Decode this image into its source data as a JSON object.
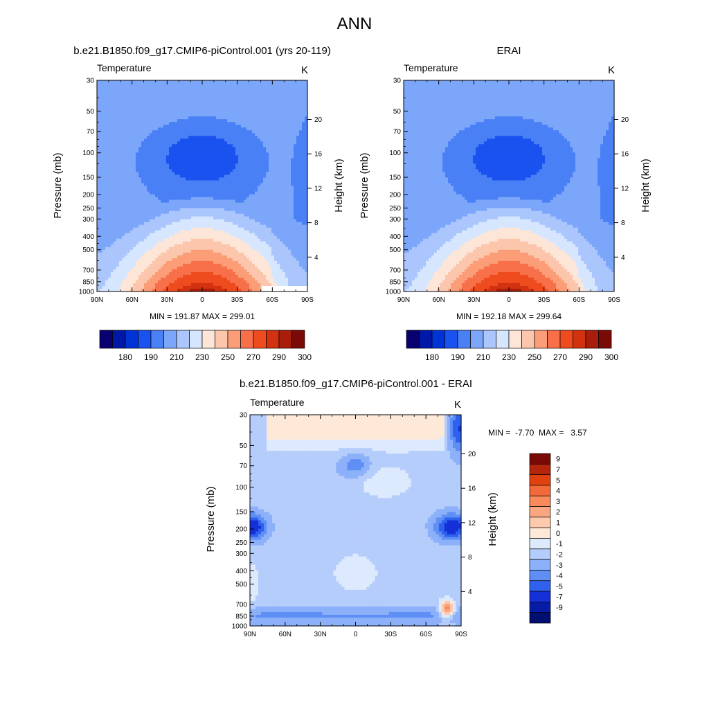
{
  "figure_title": "ANN",
  "panels": [
    {
      "id": "model",
      "title": "b.e21.B1850.f09_g17.CMIP6-piControl.001 (yrs 20-119)",
      "left_label": "Temperature",
      "right_label": "K",
      "ylabel": "Pressure (mb)",
      "y2label": "Height (km)",
      "stats": "MIN = 191.87  MAX = 299.01",
      "center_lat": 10,
      "center_y": 0.57,
      "sx": 70,
      "sy": 0.17,
      "peak": 299,
      "valley": 191.9,
      "warm_top": 0,
      "top_cold_poleS": 0,
      "bump1": 1
    },
    {
      "id": "obs",
      "title": "ERAI",
      "left_label": "Temperature",
      "right_label": "K",
      "ylabel": "Pressure (mb)",
      "y2label": "Height (km)",
      "stats": "MIN = 192.18  MAX = 299.64",
      "center_lat": 10,
      "center_y": 0.57,
      "sx": 70,
      "sy": 0.17,
      "peak": 299.6,
      "valley": 192.2,
      "warm_top": 0,
      "top_cold_poleS": 0,
      "bump1": 0
    },
    {
      "id": "diff",
      "title": "b.e21.B1850.f09_g17.CMIP6-piControl.001 - ERAI",
      "left_label": "Temperature",
      "right_label": "K",
      "ylabel": "Pressure (mb)",
      "y2label": "Height (km)",
      "stats": "MIN =  -7.70  MAX =   3.57"
    }
  ],
  "axes": {
    "pressure_ticks": [
      30,
      50,
      70,
      100,
      150,
      200,
      250,
      300,
      400,
      500,
      700,
      850,
      1000
    ],
    "pressure_labels": [
      "30",
      "50",
      "70",
      "100",
      "150",
      "200",
      "250",
      "300",
      "400",
      "500",
      "700",
      "850",
      "1000"
    ],
    "height_ticks": [
      4,
      8,
      12,
      16,
      20
    ],
    "height_labels": [
      "4",
      "8",
      "12",
      "16",
      "20"
    ],
    "lat_ticks": [
      90,
      60,
      30,
      0,
      -30,
      -60,
      -90
    ],
    "lat_labels": [
      "90N",
      "60N",
      "30N",
      "0",
      "30S",
      "60S",
      "90S"
    ]
  },
  "colorbar_abs": {
    "labels": [
      "180",
      "190",
      "210",
      "230",
      "250",
      "270",
      "290",
      "300"
    ],
    "colors": [
      "#08006e",
      "#0018a8",
      "#0033d6",
      "#1a52f0",
      "#4a80f5",
      "#7ca6fa",
      "#aac6fd",
      "#d6e6fe",
      "#fde6d8",
      "#fcc6ac",
      "#fb9e78",
      "#f7704a",
      "#ee4b1e",
      "#d23210",
      "#a81e0a",
      "#7a0a06"
    ]
  },
  "colorbar_diff": {
    "labels": [
      "9",
      "7",
      "5",
      "4",
      "3",
      "2",
      "1",
      "0",
      "-1",
      "-2",
      "-3",
      "-4",
      "-5",
      "-7",
      "-9"
    ],
    "colors": [
      "#7a0a06",
      "#b3260c",
      "#e0420f",
      "#f26a3a",
      "#f88a5c",
      "#fba683",
      "#fdc9ad",
      "#fee8d8",
      "#ddeafd",
      "#b5cdfb",
      "#8cb0f9",
      "#5f8ff4",
      "#2f61ee",
      "#1530d8",
      "#061ca6",
      "#020e70"
    ]
  },
  "chart_data": [
    {
      "type": "heatmap",
      "title": "b.e21.B1850.f09_g17.CMIP6-piControl.001 (yrs 20-119)",
      "variable": "Temperature",
      "units": "K",
      "xlabel": "",
      "ylabel": "Pressure (mb)",
      "y2label": "Height (km)",
      "x_ticks": [
        "90N",
        "60N",
        "30N",
        "0",
        "30S",
        "60S",
        "90S"
      ],
      "y_ticks": [
        30,
        50,
        70,
        100,
        150,
        200,
        250,
        300,
        400,
        500,
        700,
        850,
        1000
      ],
      "y_scale": "log",
      "ylim": [
        1000,
        30
      ],
      "min": 191.87,
      "max": 299.01,
      "contour_levels": [
        180,
        185,
        190,
        200,
        210,
        220,
        230,
        240,
        250,
        260,
        270,
        280,
        290,
        295,
        300
      ]
    },
    {
      "type": "heatmap",
      "title": "ERAI",
      "variable": "Temperature",
      "units": "K",
      "xlabel": "",
      "ylabel": "Pressure (mb)",
      "y2label": "Height (km)",
      "x_ticks": [
        "90N",
        "60N",
        "30N",
        "0",
        "30S",
        "60S",
        "90S"
      ],
      "y_ticks": [
        30,
        50,
        70,
        100,
        150,
        200,
        250,
        300,
        400,
        500,
        700,
        850,
        1000
      ],
      "y_scale": "log",
      "ylim": [
        1000,
        30
      ],
      "min": 192.18,
      "max": 299.64,
      "contour_levels": [
        180,
        185,
        190,
        200,
        210,
        220,
        230,
        240,
        250,
        260,
        270,
        280,
        290,
        295,
        300
      ]
    },
    {
      "type": "heatmap",
      "title": "b.e21.B1850.f09_g17.CMIP6-piControl.001 - ERAI",
      "variable": "Temperature",
      "units": "K",
      "xlabel": "",
      "ylabel": "Pressure (mb)",
      "y2label": "Height (km)",
      "x_ticks": [
        "90N",
        "60N",
        "30N",
        "0",
        "30S",
        "60S",
        "90S"
      ],
      "y_ticks": [
        30,
        50,
        70,
        100,
        150,
        200,
        250,
        300,
        400,
        500,
        700,
        850,
        1000
      ],
      "y_scale": "log",
      "ylim": [
        1000,
        30
      ],
      "min": -7.7,
      "max": 3.57,
      "contour_levels": [
        -9,
        -7,
        -5,
        -4,
        -3,
        -2,
        -1,
        0,
        1,
        2,
        3,
        4,
        5,
        7,
        9
      ]
    }
  ]
}
